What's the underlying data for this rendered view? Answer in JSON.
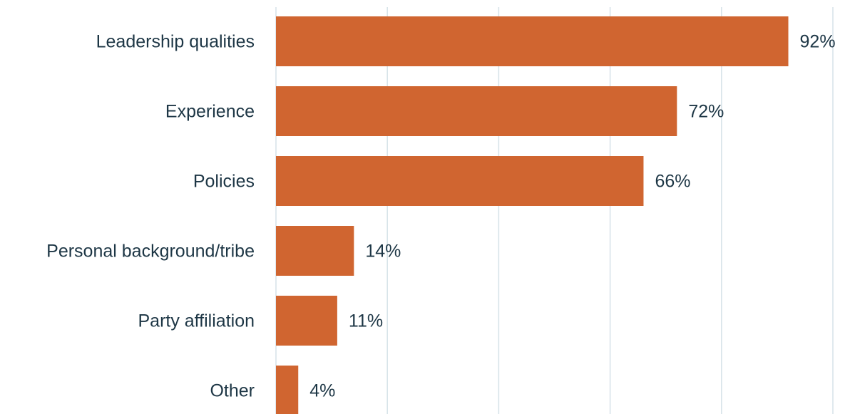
{
  "chart_data": {
    "type": "bar",
    "orientation": "horizontal",
    "categories": [
      "Leadership qualities",
      "Experience",
      "Policies",
      "Personal background/tribe",
      "Party affiliation",
      "Other"
    ],
    "values": [
      92,
      72,
      66,
      14,
      11,
      4
    ],
    "value_labels": [
      "92%",
      "72%",
      "66%",
      "14%",
      "11%",
      "4%"
    ],
    "color": "#d06530",
    "xlim": [
      0,
      100
    ],
    "xticks": [
      0,
      20,
      40,
      60,
      80,
      100
    ],
    "grid": true
  }
}
